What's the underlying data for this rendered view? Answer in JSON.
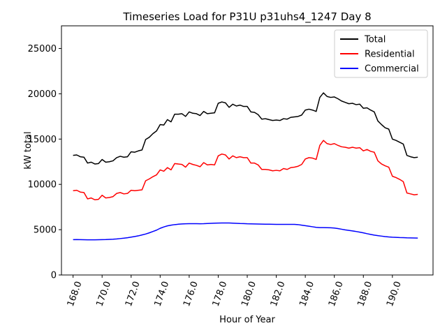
{
  "chart_data": {
    "type": "line",
    "title": "Timeseries Load for P31U p31uhs4_1247  Day 8",
    "xlabel": "Hour of Year",
    "ylabel": "kW total",
    "xlim": [
      167.2,
      192.8
    ],
    "ylim": [
      0,
      27500
    ],
    "xticks": [
      168,
      170,
      172,
      174,
      176,
      178,
      180,
      182,
      184,
      186,
      188,
      190
    ],
    "xtick_labels": [
      "168.0",
      "170.0",
      "172.0",
      "174.0",
      "176.0",
      "178.0",
      "180.0",
      "182.0",
      "184.0",
      "186.0",
      "188.0",
      "190.0"
    ],
    "yticks": [
      0,
      5000,
      10000,
      15000,
      20000,
      25000
    ],
    "ytick_labels": [
      "0",
      "5000",
      "10000",
      "15000",
      "20000",
      "25000"
    ],
    "grid": false,
    "legend": "top-right",
    "x": [
      168.0,
      168.25,
      168.5,
      168.75,
      169.0,
      169.25,
      169.5,
      169.75,
      170.0,
      170.25,
      170.5,
      170.75,
      171.0,
      171.25,
      171.5,
      171.75,
      172.0,
      172.25,
      172.5,
      172.75,
      173.0,
      173.25,
      173.5,
      173.75,
      174.0,
      174.25,
      174.5,
      174.75,
      175.0,
      175.25,
      175.5,
      175.75,
      176.0,
      176.25,
      176.5,
      176.75,
      177.0,
      177.25,
      177.5,
      177.75,
      178.0,
      178.25,
      178.5,
      178.75,
      179.0,
      179.25,
      179.5,
      179.75,
      180.0,
      180.25,
      180.5,
      180.75,
      181.0,
      181.25,
      181.5,
      181.75,
      182.0,
      182.25,
      182.5,
      182.75,
      183.0,
      183.25,
      183.5,
      183.75,
      184.0,
      184.25,
      184.5,
      184.75,
      185.0,
      185.25,
      185.5,
      185.75,
      186.0,
      186.25,
      186.5,
      186.75,
      187.0,
      187.25,
      187.5,
      187.75,
      188.0,
      188.25,
      188.5,
      188.75,
      189.0,
      189.25,
      189.5,
      189.75,
      190.0,
      190.25,
      190.5,
      190.75,
      191.0,
      191.25,
      191.5,
      191.75
    ],
    "series": [
      {
        "name": "Total",
        "color": "#000000",
        "values": [
          13200,
          13250,
          13050,
          13000,
          12350,
          12450,
          12250,
          12300,
          12750,
          12450,
          12500,
          12600,
          12950,
          13100,
          13000,
          13050,
          13600,
          13550,
          13700,
          13800,
          14950,
          15200,
          15600,
          15900,
          16600,
          16550,
          17150,
          16900,
          17750,
          17750,
          17800,
          17500,
          18000,
          17850,
          17800,
          17600,
          18050,
          17800,
          17850,
          17900,
          18950,
          19100,
          19000,
          18500,
          18850,
          18650,
          18750,
          18600,
          18600,
          18000,
          17950,
          17700,
          17200,
          17250,
          17150,
          17050,
          17100,
          17050,
          17250,
          17200,
          17400,
          17450,
          17500,
          17650,
          18200,
          18300,
          18200,
          18050,
          19600,
          20100,
          19700,
          19600,
          19650,
          19450,
          19200,
          19050,
          18900,
          18950,
          18800,
          18850,
          18400,
          18450,
          18200,
          18000,
          17000,
          16600,
          16250,
          16100,
          15000,
          14850,
          14650,
          14450,
          13200,
          13050,
          12950,
          13000
        ]
      },
      {
        "name": "Residential",
        "color": "#ff0000",
        "values": [
          9300,
          9350,
          9150,
          9100,
          8400,
          8500,
          8300,
          8350,
          8800,
          8500,
          8550,
          8650,
          9000,
          9100,
          8950,
          9000,
          9350,
          9300,
          9350,
          9400,
          10400,
          10600,
          10850,
          11050,
          11600,
          11450,
          11850,
          11600,
          12300,
          12250,
          12200,
          11900,
          12350,
          12200,
          12100,
          11950,
          12400,
          12150,
          12200,
          12150,
          13150,
          13350,
          13250,
          12800,
          13150,
          12950,
          13050,
          12950,
          12950,
          12350,
          12350,
          12150,
          11650,
          11650,
          11600,
          11500,
          11550,
          11500,
          11750,
          11650,
          11850,
          11900,
          12000,
          12200,
          12800,
          12950,
          12900,
          12750,
          14300,
          14850,
          14500,
          14400,
          14500,
          14300,
          14150,
          14100,
          14000,
          14100,
          14000,
          14050,
          13700,
          13850,
          13650,
          13550,
          12600,
          12250,
          12050,
          11900,
          10900,
          10750,
          10550,
          10300,
          9050,
          8950,
          8850,
          8900
        ]
      },
      {
        "name": "Commercial",
        "color": "#0000ff",
        "values": [
          3900,
          3910,
          3900,
          3890,
          3880,
          3880,
          3880,
          3890,
          3900,
          3910,
          3930,
          3950,
          3980,
          4020,
          4060,
          4110,
          4180,
          4250,
          4320,
          4420,
          4520,
          4650,
          4800,
          4950,
          5150,
          5300,
          5420,
          5500,
          5560,
          5600,
          5630,
          5650,
          5660,
          5660,
          5660,
          5650,
          5660,
          5680,
          5700,
          5720,
          5730,
          5740,
          5740,
          5740,
          5720,
          5700,
          5680,
          5670,
          5650,
          5640,
          5630,
          5620,
          5610,
          5600,
          5600,
          5590,
          5580,
          5580,
          5580,
          5580,
          5580,
          5580,
          5560,
          5500,
          5440,
          5380,
          5320,
          5260,
          5230,
          5230,
          5220,
          5210,
          5180,
          5120,
          5050,
          4980,
          4920,
          4860,
          4800,
          4730,
          4650,
          4560,
          4480,
          4400,
          4340,
          4290,
          4240,
          4200,
          4170,
          4150,
          4130,
          4120,
          4100,
          4090,
          4080,
          4070
        ]
      }
    ]
  }
}
